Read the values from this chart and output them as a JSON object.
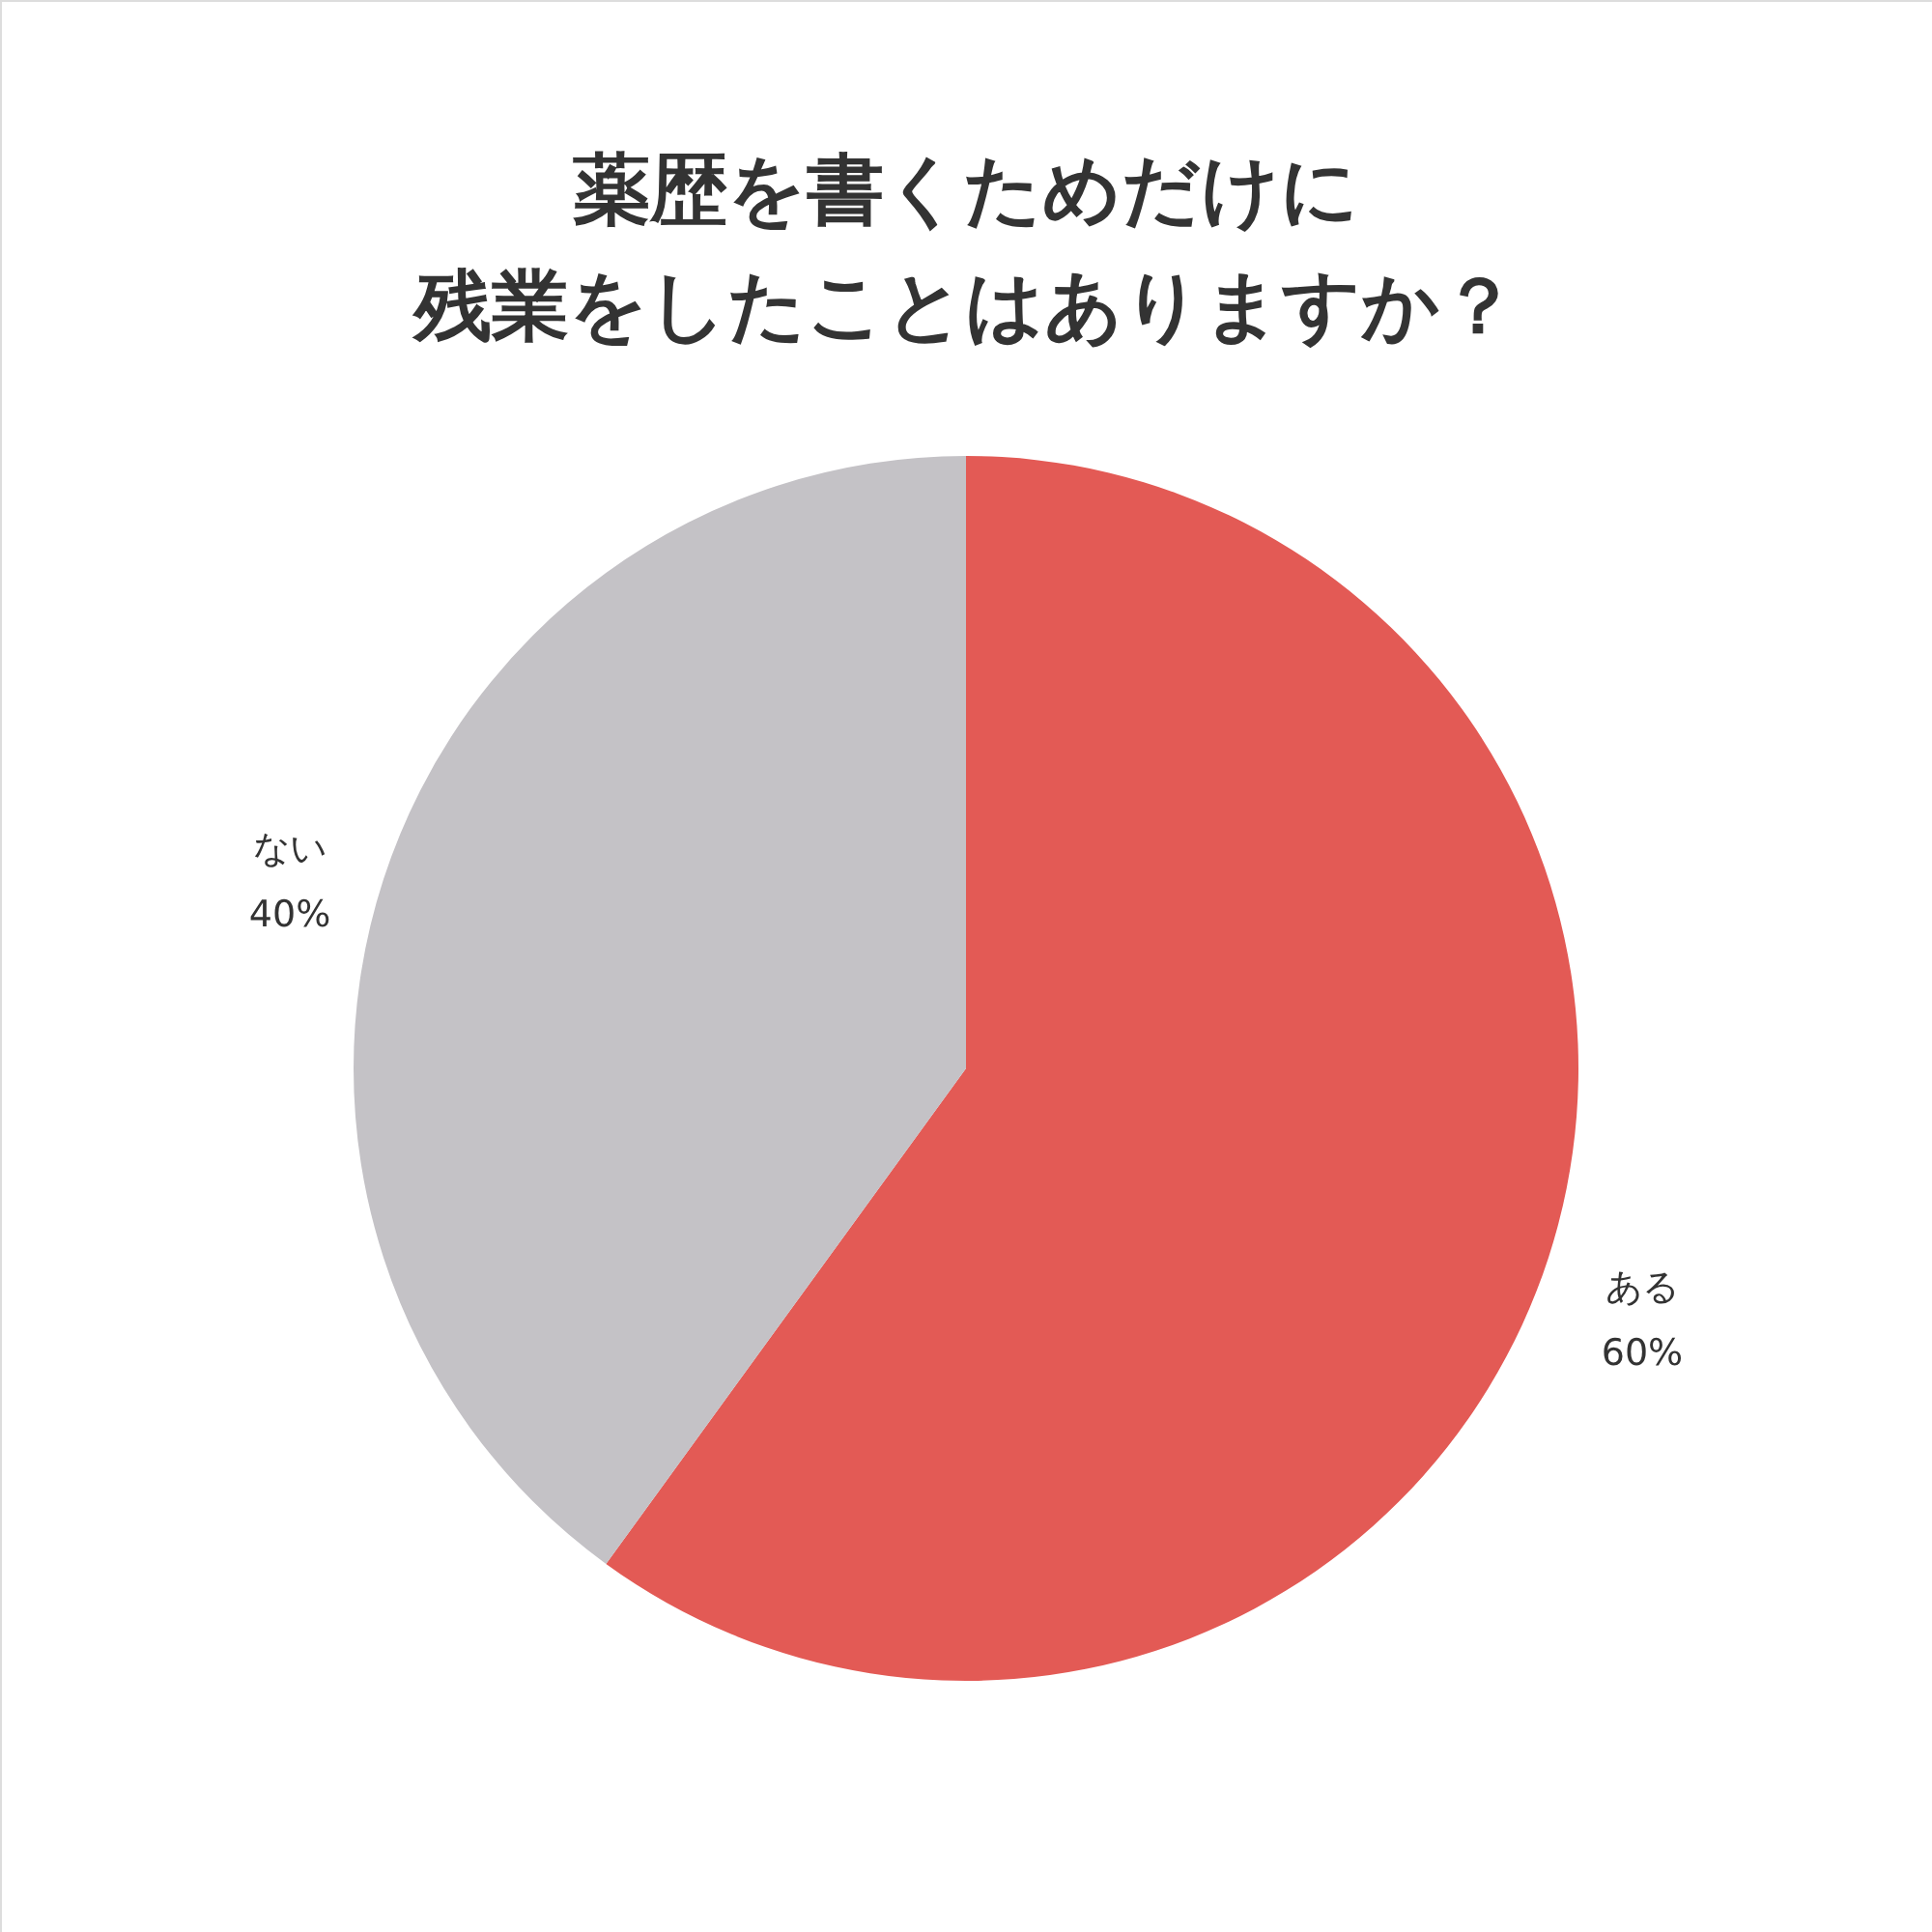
{
  "chart_data": {
    "type": "pie",
    "title": [
      "薬歴を書くためだけに",
      "残業をしたことはありますか？"
    ],
    "categories": [
      "ある",
      "ない"
    ],
    "values": [
      60,
      40
    ],
    "colors": [
      "#e35a55",
      "#c4c2c6"
    ],
    "value_labels": [
      "60%",
      "40%"
    ]
  }
}
